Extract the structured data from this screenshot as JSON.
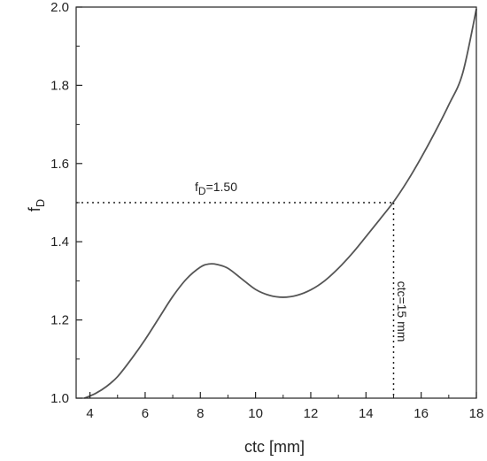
{
  "chart_data": {
    "type": "line",
    "xlabel_main": "ctc [mm]",
    "ylabel": {
      "base": "f",
      "sub": "D"
    },
    "xlim": [
      3.5,
      18
    ],
    "ylim": [
      1.0,
      2.0
    ],
    "xticks": [
      4,
      6,
      8,
      10,
      12,
      14,
      16,
      18
    ],
    "yticks": [
      1.0,
      1.2,
      1.4,
      1.6,
      1.8,
      2.0
    ],
    "x_tick_labels": [
      "4",
      "6",
      "8",
      "10",
      "12",
      "14",
      "16",
      "18"
    ],
    "y_tick_labels": [
      "1.0",
      "1.2",
      "1.4",
      "1.6",
      "1.8",
      "2.0"
    ],
    "grid": false,
    "series": [
      {
        "color": "#555555",
        "points": [
          [
            3.8,
            1.0
          ],
          [
            4.2,
            1.012
          ],
          [
            4.6,
            1.03
          ],
          [
            5.0,
            1.055
          ],
          [
            5.5,
            1.1
          ],
          [
            6.0,
            1.15
          ],
          [
            6.5,
            1.205
          ],
          [
            7.0,
            1.26
          ],
          [
            7.5,
            1.305
          ],
          [
            8.0,
            1.335
          ],
          [
            8.3,
            1.343
          ],
          [
            8.6,
            1.342
          ],
          [
            9.0,
            1.332
          ],
          [
            9.5,
            1.305
          ],
          [
            10.0,
            1.278
          ],
          [
            10.5,
            1.263
          ],
          [
            11.0,
            1.258
          ],
          [
            11.5,
            1.263
          ],
          [
            12.0,
            1.277
          ],
          [
            12.5,
            1.3
          ],
          [
            13.0,
            1.332
          ],
          [
            13.5,
            1.37
          ],
          [
            14.0,
            1.413
          ],
          [
            14.5,
            1.457
          ],
          [
            15.0,
            1.502
          ],
          [
            15.5,
            1.555
          ],
          [
            16.0,
            1.615
          ],
          [
            16.5,
            1.68
          ],
          [
            17.0,
            1.75
          ],
          [
            17.5,
            1.83
          ],
          [
            18.0,
            1.995
          ]
        ]
      }
    ],
    "annotations": {
      "point": {
        "x": 15,
        "y": 1.5
      },
      "hline_label": {
        "base": "f",
        "sub": "D",
        "rest": "=1.50"
      },
      "vline_label": "ctc=15 mm"
    }
  }
}
